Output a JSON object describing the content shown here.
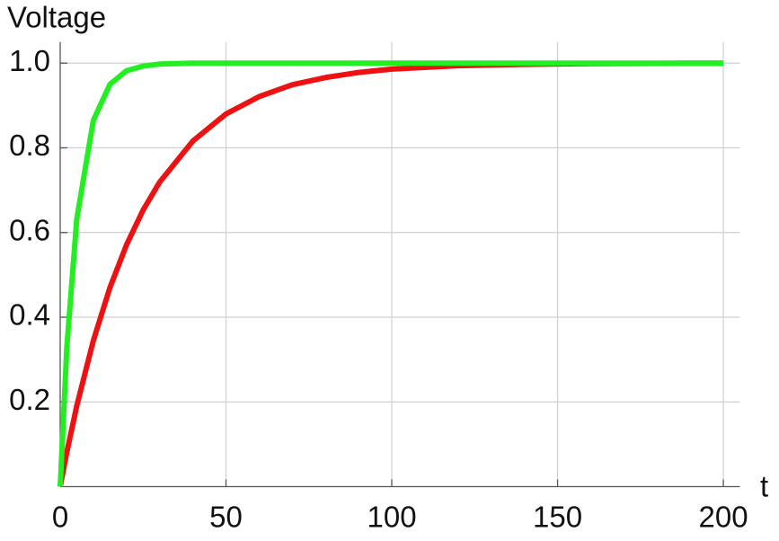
{
  "chart_data": {
    "type": "line",
    "x_label": "t",
    "y_label": "Voltage",
    "x": [
      0,
      2,
      5,
      10,
      15,
      20,
      25,
      30,
      40,
      50,
      60,
      70,
      80,
      90,
      100,
      120,
      140,
      160,
      180,
      200
    ],
    "series": [
      {
        "color": "#ee1111",
        "values": [
          0,
          0.081,
          0.191,
          0.345,
          0.47,
          0.571,
          0.653,
          0.719,
          0.816,
          0.88,
          0.921,
          0.949,
          0.966,
          0.978,
          0.986,
          0.994,
          0.997,
          0.999,
          0.9995,
          0.9998
        ]
      },
      {
        "color": "#22ee22",
        "values": [
          0,
          0.33,
          0.632,
          0.865,
          0.95,
          0.982,
          0.993,
          0.998,
          1,
          1,
          1,
          1,
          1,
          1,
          1,
          1,
          1,
          1,
          1,
          1
        ]
      }
    ],
    "xlim": [
      0,
      205
    ],
    "ylim": [
      0,
      1.05
    ],
    "xticks": [
      0,
      50,
      100,
      150,
      200
    ],
    "yticks": [
      0.2,
      0.4,
      0.6,
      0.8,
      {
        "value": 1,
        "label": "1.0"
      }
    ],
    "grid": true
  }
}
